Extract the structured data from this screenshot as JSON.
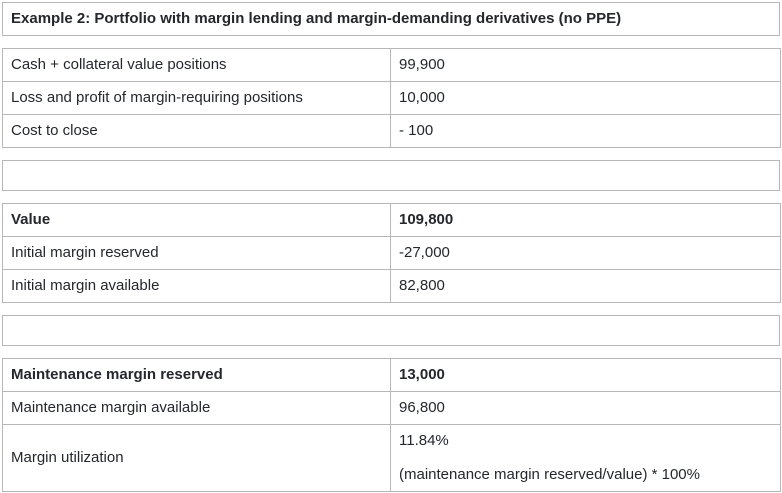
{
  "colors": {
    "text": "#24272c",
    "border": "#b7b7b7",
    "background": "#ffffff"
  },
  "title": "Example 2: Portfolio with margin lending and margin-demanding derivatives (no PPE)",
  "tables": [
    {
      "name": "positions",
      "rows": [
        {
          "label": "Cash + collateral value positions",
          "value": "99,900",
          "bold": false
        },
        {
          "label": "Loss and profit of margin-requiring positions",
          "value": "10,000",
          "bold": false
        },
        {
          "label": "Cost to close",
          "value": "- 100",
          "bold": false
        }
      ]
    },
    {
      "name": "value",
      "rows": [
        {
          "label": "Value",
          "value": "109,800",
          "bold": true
        },
        {
          "label": "Initial margin reserved",
          "value": "-27,000",
          "bold": false
        },
        {
          "label": "Initial margin available",
          "value": "82,800",
          "bold": false
        }
      ]
    },
    {
      "name": "maintenance",
      "rows": [
        {
          "label": "Maintenance margin reserved",
          "value": "13,000",
          "bold": true
        },
        {
          "label": "Maintenance margin available",
          "value": "96,800",
          "bold": false
        },
        {
          "label": "Margin utilization",
          "value": "11.84%",
          "value_note": "(maintenance margin reserved/value) * 100%",
          "bold": false
        }
      ]
    }
  ]
}
